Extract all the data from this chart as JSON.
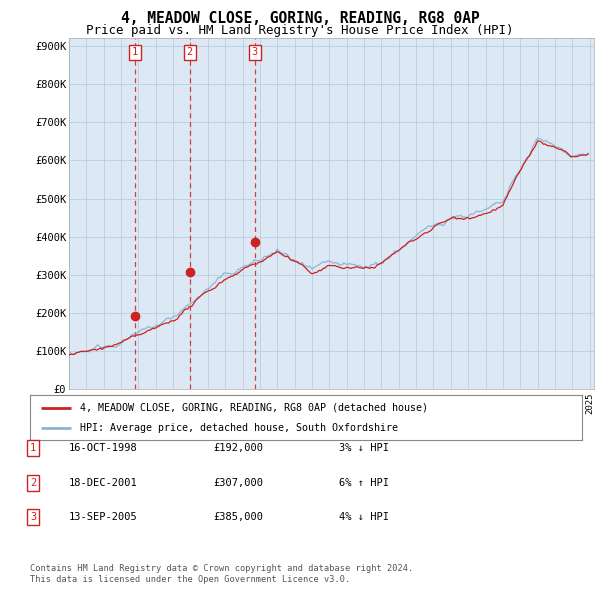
{
  "title": "4, MEADOW CLOSE, GORING, READING, RG8 0AP",
  "subtitle": "Price paid vs. HM Land Registry's House Price Index (HPI)",
  "yticks": [
    0,
    100000,
    200000,
    300000,
    400000,
    500000,
    600000,
    700000,
    800000,
    900000
  ],
  "ytick_labels": [
    "£0",
    "£100K",
    "£200K",
    "£300K",
    "£400K",
    "£500K",
    "£600K",
    "£700K",
    "£800K",
    "£900K"
  ],
  "sale_dates": [
    1998.79,
    2001.96,
    2005.71
  ],
  "sale_prices": [
    192000,
    307000,
    385000
  ],
  "sale_labels": [
    "1",
    "2",
    "3"
  ],
  "hpi_color": "#8ab4d4",
  "price_color": "#cc2222",
  "legend_line1": "4, MEADOW CLOSE, GORING, READING, RG8 0AP (detached house)",
  "legend_line2": "HPI: Average price, detached house, South Oxfordshire",
  "table_entries": [
    {
      "num": "1",
      "date": "16-OCT-1998",
      "price": "£192,000",
      "hpi": "3% ↓ HPI"
    },
    {
      "num": "2",
      "date": "18-DEC-2001",
      "price": "£307,000",
      "hpi": "6% ↑ HPI"
    },
    {
      "num": "3",
      "date": "13-SEP-2005",
      "price": "£385,000",
      "hpi": "4% ↓ HPI"
    }
  ],
  "footnote1": "Contains HM Land Registry data © Crown copyright and database right 2024.",
  "footnote2": "This data is licensed under the Open Government Licence v3.0.",
  "background_color": "#ffffff",
  "plot_bg_color": "#dce9f5",
  "grid_color": "#b8cfe0",
  "vline_color": "#cc2222"
}
